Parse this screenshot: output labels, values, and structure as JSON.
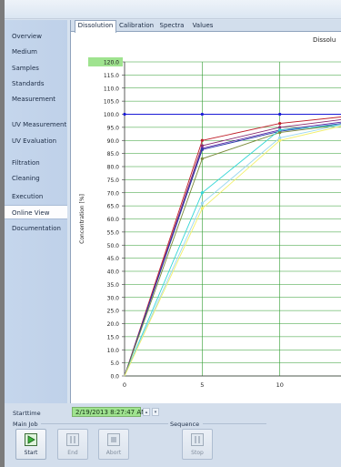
{
  "sidebar": {
    "items": [
      {
        "label": "Overview",
        "active": false
      },
      {
        "label": "Medium",
        "active": false
      },
      {
        "label": "Samples",
        "active": false
      },
      {
        "label": "Standards",
        "active": false
      },
      {
        "label": "Measurement",
        "active": false
      },
      {
        "label": "UV Measurement",
        "active": false
      },
      {
        "label": "UV Evaluation",
        "active": false
      },
      {
        "label": "Filtration",
        "active": false
      },
      {
        "label": "Cleaning",
        "active": false
      },
      {
        "label": "Execution",
        "active": false
      },
      {
        "label": "Online View",
        "active": true
      },
      {
        "label": "Documentation",
        "active": false
      }
    ]
  },
  "tabs": [
    {
      "label": "Dissolution",
      "active": true
    },
    {
      "label": "Calibration",
      "active": false
    },
    {
      "label": "Spectra",
      "active": false
    },
    {
      "label": "Values",
      "active": false
    }
  ],
  "chart_title_visible": "Dissolu",
  "chart_data": {
    "type": "line",
    "title": "Dissolu",
    "ylabel": "Concentration [%]",
    "xlabel": "",
    "xlim": [
      0,
      14
    ],
    "ylim": [
      0,
      120
    ],
    "x_ticks": [
      0,
      5,
      10
    ],
    "y_ticks": [
      "120.0",
      "115.0",
      "110.0",
      "105.0",
      "100.0",
      "95.0",
      "90.0",
      "85.0",
      "80.0",
      "75.0",
      "70.0",
      "65.0",
      "60.0",
      "55.0",
      "50.0",
      "45.0",
      "40.0",
      "35.0",
      "30.0",
      "25.0",
      "20.0",
      "15.0",
      "10.0",
      "5.0",
      "0.0"
    ],
    "highlighted_tick": "120.0",
    "highlight_color": "#9fe38f",
    "grid": true,
    "gridline_color": "#2e9b2e",
    "series": [
      {
        "color": "#1a1ad6",
        "x": [
          0,
          14
        ],
        "y": [
          100,
          100
        ],
        "markers": [
          [
            0,
            100
          ],
          [
            5,
            100
          ],
          [
            10,
            100
          ]
        ]
      },
      {
        "color": "#c0202a",
        "x": [
          0,
          5,
          10,
          14
        ],
        "y": [
          0,
          90,
          96.5,
          99
        ]
      },
      {
        "color": "#8b2a6e",
        "x": [
          0,
          5,
          10,
          14
        ],
        "y": [
          0,
          88,
          95,
          98
        ]
      },
      {
        "color": "#5a2aa8",
        "x": [
          0,
          5,
          10,
          14
        ],
        "y": [
          0,
          87,
          94,
          97
        ]
      },
      {
        "color": "#2a3aa8",
        "x": [
          0,
          5,
          10,
          14
        ],
        "y": [
          0,
          86.5,
          93.5,
          96.5
        ]
      },
      {
        "color": "#7a8a3a",
        "x": [
          0,
          5,
          10,
          14
        ],
        "y": [
          0,
          83,
          93,
          96
        ]
      },
      {
        "color": "#33d6d6",
        "x": [
          0,
          5,
          10,
          14
        ],
        "y": [
          0,
          70,
          94,
          96
        ]
      },
      {
        "color": "#9ad7f0",
        "x": [
          0,
          5,
          10,
          14
        ],
        "y": [
          0,
          66,
          91,
          96
        ]
      },
      {
        "color": "#f2ef6a",
        "x": [
          0,
          5,
          10,
          14
        ],
        "y": [
          0,
          64,
          90,
          95.5
        ]
      }
    ]
  },
  "starttime": {
    "label": "Starttime",
    "value": "2/19/2013 8:27:47 AM",
    "spin_up": "▴",
    "spin_down": "▾"
  },
  "main_job": {
    "label": "Main Job",
    "buttons": [
      {
        "label": "Start"
      },
      {
        "label": "End"
      },
      {
        "label": "Abort"
      }
    ]
  },
  "sequence": {
    "label": "Sequence",
    "buttons": [
      {
        "label": "Stop"
      }
    ]
  }
}
